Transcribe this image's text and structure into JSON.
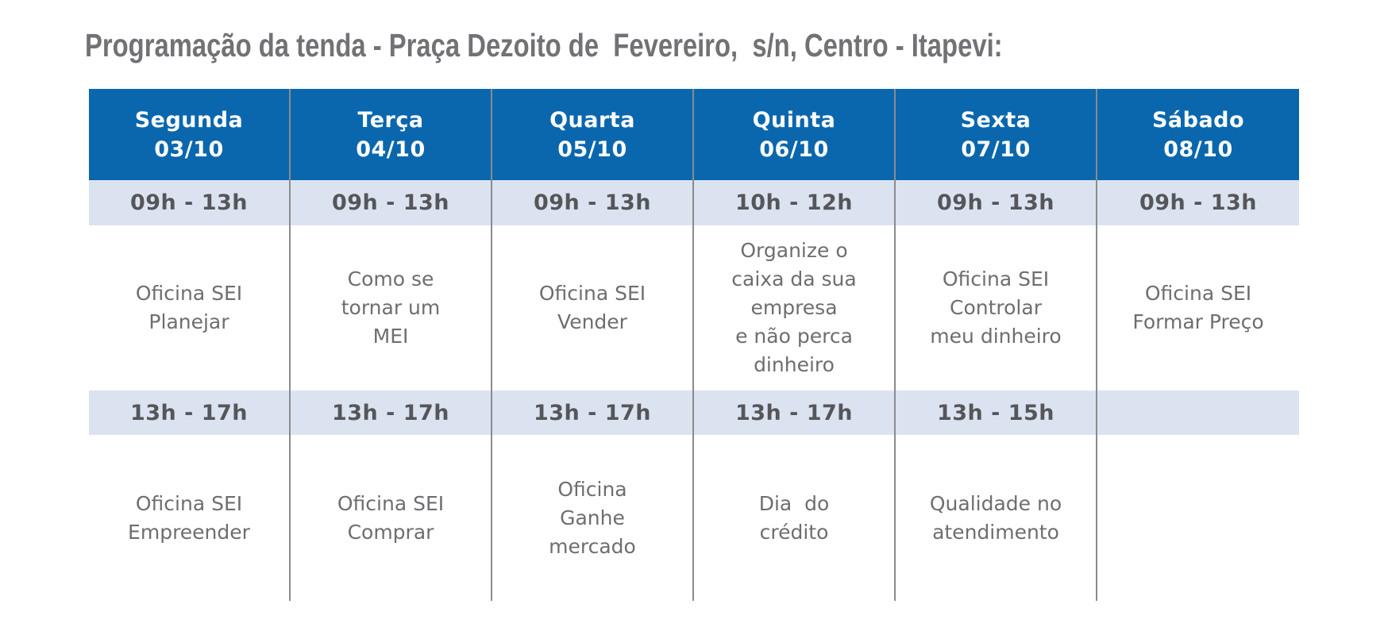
{
  "title": "Programação da tenda - Praça Dezoito de  Fevereiro,  s/n, Centro - Itapevi:",
  "colors": {
    "header_bg": "#0a67ad",
    "header_text": "#ffffff",
    "time_row_bg": "#dce3f0",
    "time_text": "#55565a",
    "activity_text": "#6d6e71",
    "title_text": "#717275",
    "grid_line": "#8a8b8e"
  },
  "table": {
    "columns": [
      {
        "day": "Segunda",
        "date": "03/10",
        "morning_time": "09h - 13h",
        "morning_activity": "Oficina SEI\nPlanejar",
        "afternoon_time": "13h - 17h",
        "afternoon_activity": "Oficina SEI\nEmpreender"
      },
      {
        "day": "Terça",
        "date": "04/10",
        "morning_time": "09h - 13h",
        "morning_activity": "Como se\ntornar um\nMEI",
        "afternoon_time": "13h - 17h",
        "afternoon_activity": "Oficina SEI\nComprar"
      },
      {
        "day": "Quarta",
        "date": "05/10",
        "morning_time": "09h - 13h",
        "morning_activity": "Oficina SEI\nVender",
        "afternoon_time": "13h - 17h",
        "afternoon_activity": "Oficina\nGanhe\nmercado"
      },
      {
        "day": "Quinta",
        "date": "06/10",
        "morning_time": "10h - 12h",
        "morning_activity": "Organize o\ncaixa da sua\nempresa\ne não perca\ndinheiro",
        "afternoon_time": "13h - 17h",
        "afternoon_activity": "Dia  do\ncrédito"
      },
      {
        "day": "Sexta",
        "date": "07/10",
        "morning_time": "09h - 13h",
        "morning_activity": "Oficina SEI\nControlar\nmeu dinheiro",
        "afternoon_time": "13h - 15h",
        "afternoon_activity": "Qualidade no\natendimento"
      },
      {
        "day": "Sábado",
        "date": "08/10",
        "morning_time": "09h - 13h",
        "morning_activity": "Oficina SEI\nFormar Preço",
        "afternoon_time": "",
        "afternoon_activity": ""
      }
    ]
  }
}
